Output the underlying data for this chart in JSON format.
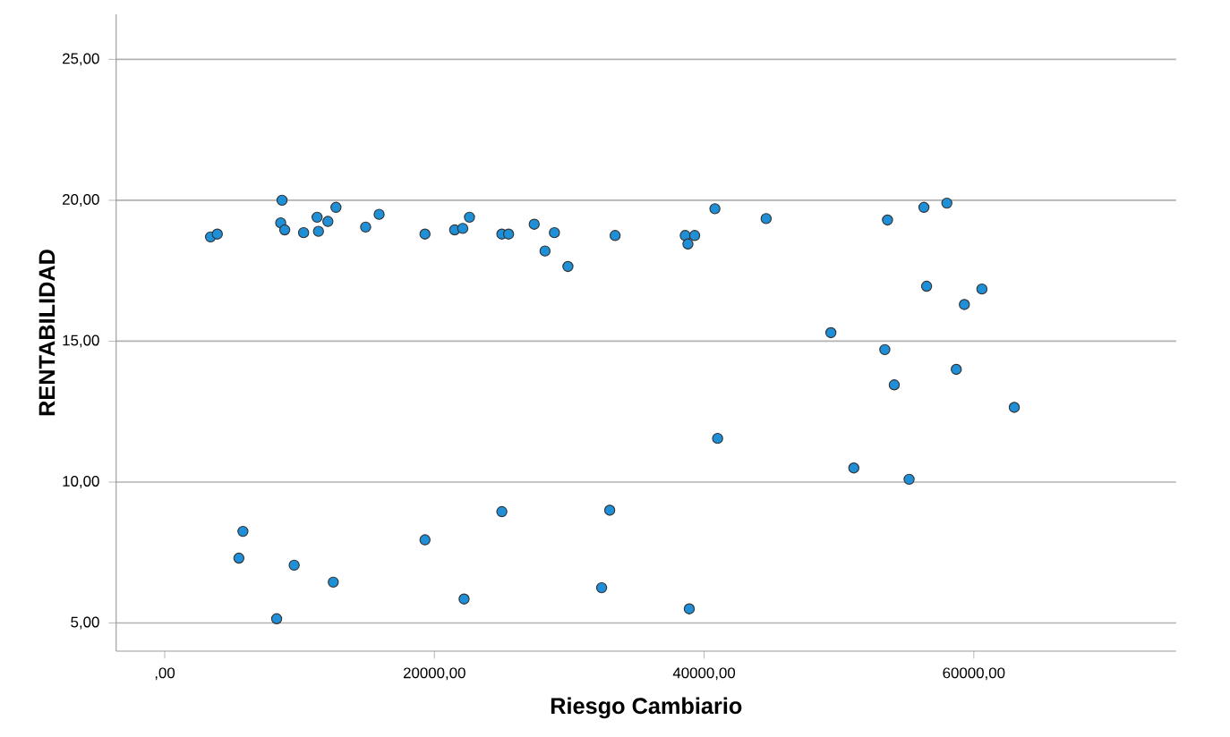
{
  "chart_data": {
    "type": "scatter",
    "xlabel": "Riesgo Cambiario",
    "ylabel": "RENTABILIDAD",
    "xlim": [
      -3600,
      75000
    ],
    "ylim": [
      4,
      26.6
    ],
    "xticks": [
      {
        "value": 0,
        "label": ",00"
      },
      {
        "value": 20000,
        "label": "20000,00"
      },
      {
        "value": 40000,
        "label": "40000,00"
      },
      {
        "value": 60000,
        "label": "60000,00"
      }
    ],
    "yticks": [
      {
        "value": 5,
        "label": "5,00"
      },
      {
        "value": 10,
        "label": "10,00"
      },
      {
        "value": 15,
        "label": "15,00"
      },
      {
        "value": 20,
        "label": "20,00"
      },
      {
        "value": 25,
        "label": "25,00"
      }
    ],
    "grid": "y",
    "marker": "circle",
    "series": [
      {
        "color": "#1f8fd8",
        "x": [
          3400,
          3900,
          8700,
          8600,
          8900,
          10300,
          11300,
          11400,
          12100,
          12700,
          14900,
          15900,
          19300,
          21500,
          22100,
          22600,
          25000,
          25500,
          27400,
          28200,
          28900,
          29900,
          33400,
          38600,
          38800,
          39300,
          40800,
          44600,
          49400,
          51100,
          53600,
          53400,
          54100,
          55200,
          56300,
          56500,
          58000,
          58700,
          59300,
          60600,
          63000,
          41000,
          5500,
          5800,
          8300,
          9600,
          12500,
          19300,
          22200,
          25000,
          32400,
          33000,
          38900
        ],
        "values": [
          18.7,
          18.8,
          20.0,
          19.2,
          18.95,
          18.85,
          19.4,
          18.9,
          19.25,
          19.75,
          19.05,
          19.5,
          18.8,
          18.95,
          19.0,
          19.4,
          18.8,
          18.8,
          19.15,
          18.2,
          18.85,
          17.65,
          18.75,
          18.75,
          18.45,
          18.75,
          19.7,
          19.35,
          15.3,
          10.5,
          19.3,
          14.7,
          13.45,
          10.1,
          19.75,
          16.95,
          19.9,
          14.0,
          16.3,
          16.85,
          12.65,
          11.55,
          7.3,
          8.25,
          5.15,
          7.05,
          6.45,
          7.95,
          5.85,
          8.95,
          6.25,
          9.0,
          5.5
        ]
      }
    ]
  }
}
